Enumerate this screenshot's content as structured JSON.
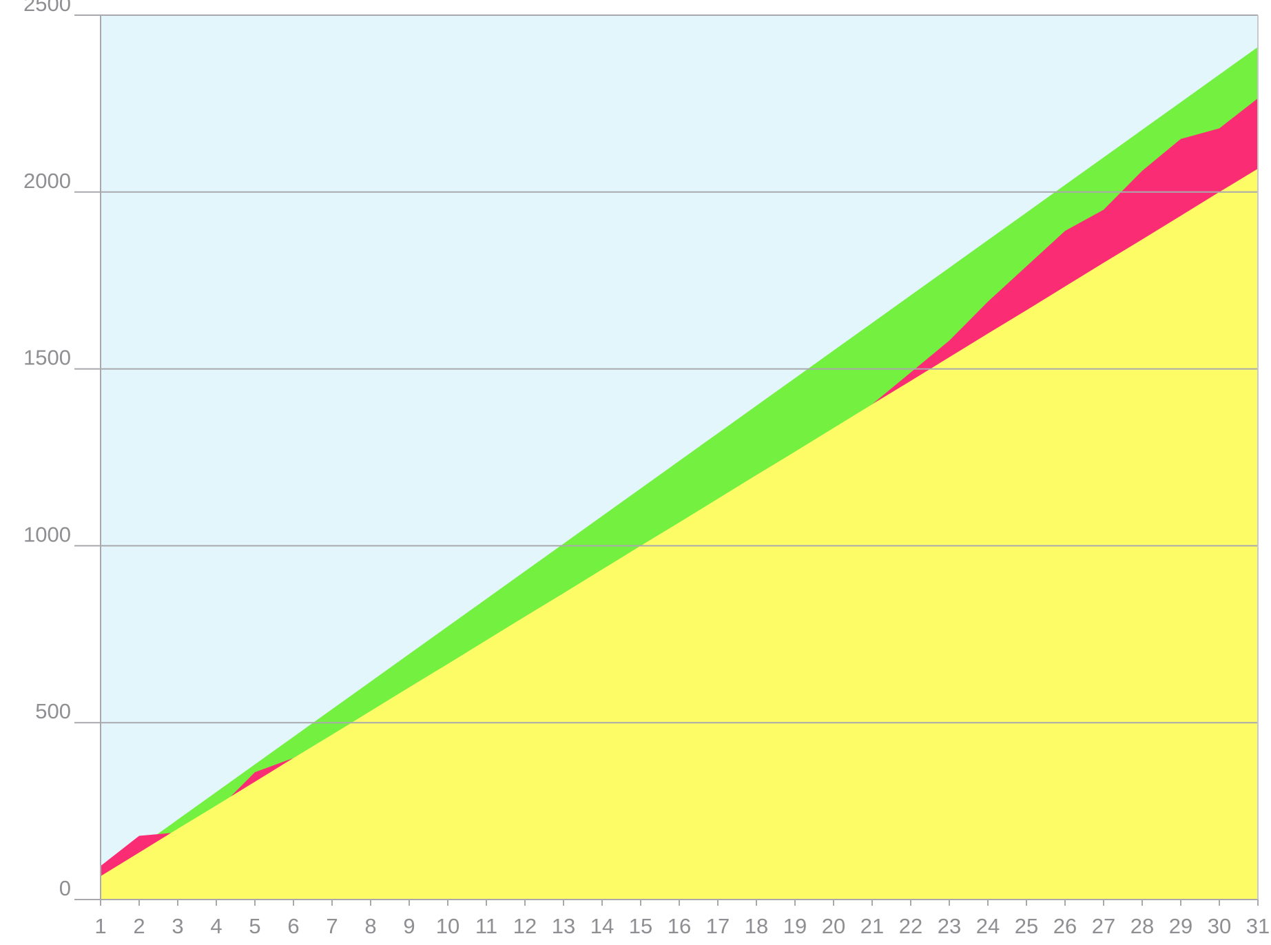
{
  "chart_data": {
    "type": "area",
    "stacked": false,
    "title": "",
    "xlabel": "",
    "ylabel": "",
    "categories": [
      "1",
      "2",
      "3",
      "4",
      "5",
      "6",
      "7",
      "8",
      "9",
      "10",
      "11",
      "12",
      "13",
      "14",
      "15",
      "16",
      "17",
      "18",
      "19",
      "20",
      "21",
      "22",
      "23",
      "24",
      "25",
      "26",
      "27",
      "28",
      "29",
      "30",
      "31"
    ],
    "ylim": [
      0,
      2500
    ],
    "yticks": [
      0,
      500,
      1000,
      1500,
      2000,
      2500
    ],
    "grid": true,
    "plot_background": "#e2f6fc",
    "series": [
      {
        "color": "#73f040",
        "values": [
          70,
          148,
          226,
          304,
          382,
          460,
          538,
          616,
          694,
          772,
          850,
          928,
          1006,
          1084,
          1162,
          1240,
          1318,
          1396,
          1474,
          1552,
          1630,
          1708,
          1786,
          1864,
          1942,
          2020,
          2098,
          2176,
          2254,
          2332,
          2410
        ]
      },
      {
        "color": "#fa2c73",
        "values": [
          95,
          180,
          190,
          250,
          360,
          400,
          465,
          530,
          600,
          665,
          730,
          800,
          865,
          930,
          1000,
          1065,
          1130,
          1200,
          1265,
          1330,
          1400,
          1490,
          1580,
          1690,
          1790,
          1890,
          1950,
          2060,
          2150,
          2180,
          2265
        ]
      },
      {
        "color": "#fdfc67",
        "values": [
          66,
          133,
          200,
          266,
          333,
          400,
          466,
          533,
          600,
          666,
          733,
          800,
          866,
          933,
          1000,
          1066,
          1133,
          1200,
          1266,
          1333,
          1400,
          1466,
          1533,
          1600,
          1666,
          1733,
          1800,
          1866,
          1933,
          2000,
          2066
        ]
      }
    ]
  }
}
